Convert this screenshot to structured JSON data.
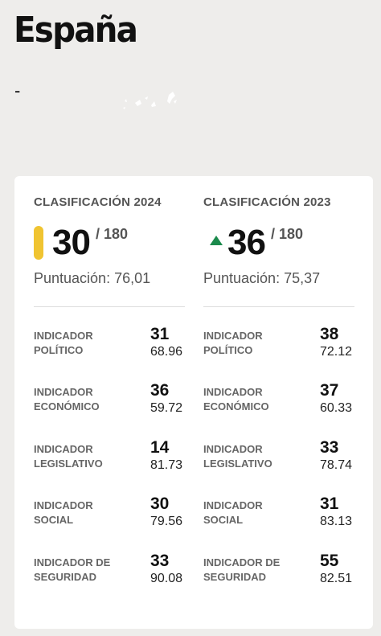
{
  "header": {
    "country": "España",
    "subtitle": "-"
  },
  "ranking_2024": {
    "label": "CLASIFICACIÓN 2024",
    "rank": "30",
    "total": "/ 180",
    "score": "Puntuación: 76,01",
    "indicator_color": "#f0c431",
    "indicators": [
      {
        "label": "INDICADOR POLÍTICO",
        "rank": "31",
        "score": "68.96"
      },
      {
        "label": "INDICADOR ECONÓMICO",
        "rank": "36",
        "score": "59.72"
      },
      {
        "label": "INDICADOR LEGISLATIVO",
        "rank": "14",
        "score": "81.73"
      },
      {
        "label": "INDICADOR SOCIAL",
        "rank": "30",
        "score": "79.56"
      },
      {
        "label": "INDICADOR DE SEGURIDAD",
        "rank": "33",
        "score": "90.08"
      }
    ]
  },
  "ranking_2023": {
    "label": "CLASIFICACIÓN 2023",
    "rank": "36",
    "total": "/ 180",
    "score": "Puntuación: 75,37",
    "trend_icon": "up-triangle-icon",
    "trend_color": "#1b8a4c",
    "indicators": [
      {
        "label": "INDICADOR POLÍTICO",
        "rank": "38",
        "score": "72.12"
      },
      {
        "label": "INDICADOR ECONÓMICO",
        "rank": "37",
        "score": "60.33"
      },
      {
        "label": "INDICADOR LEGISLATIVO",
        "rank": "33",
        "score": "78.74"
      },
      {
        "label": "INDICADOR SOCIAL",
        "rank": "31",
        "score": "83.13"
      },
      {
        "label": "INDICADOR DE SEGURIDAD",
        "rank": "55",
        "score": "82.51"
      }
    ]
  }
}
